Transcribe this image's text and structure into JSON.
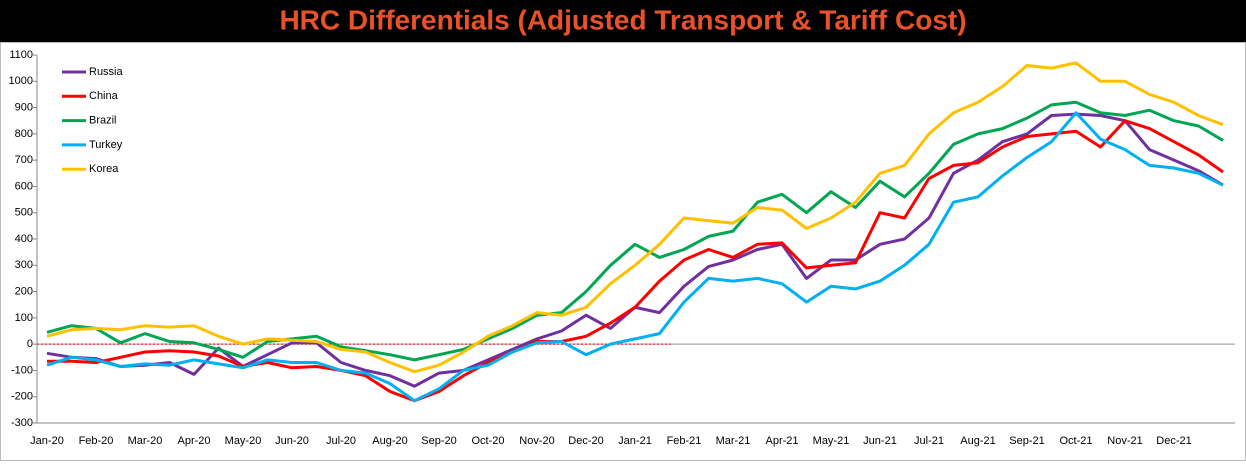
{
  "chart_data": {
    "type": "line",
    "title": "HRC Differentials (Adjusted Transport & Tariff Cost)",
    "categories": [
      "Jan-20",
      null,
      "Feb-20",
      null,
      "Mar-20",
      null,
      "Apr-20",
      null,
      "May-20",
      null,
      "Jun-20",
      null,
      "Jul-20",
      null,
      "Aug-20",
      null,
      "Sep-20",
      null,
      "Oct-20",
      null,
      "Nov-20",
      null,
      "Dec-20",
      null,
      "Jan-21",
      null,
      "Feb-21",
      null,
      "Mar-21",
      null,
      "Apr-21",
      null,
      "May-21",
      null,
      "Jun-21",
      null,
      "Jul-21",
      null,
      "Aug-21",
      null,
      "Sep-21",
      null,
      "Oct-21",
      null,
      "Nov-21",
      null,
      "Dec-21",
      null,
      null
    ],
    "series": [
      {
        "name": "Russia",
        "color": "#7030a0",
        "values": [
          -35,
          -50,
          -55,
          -85,
          -80,
          -70,
          -115,
          -15,
          -85,
          -40,
          5,
          5,
          -70,
          -100,
          -120,
          -160,
          -110,
          -100,
          -60,
          -20,
          20,
          50,
          110,
          60,
          140,
          120,
          220,
          295,
          320,
          360,
          380,
          250,
          320,
          320,
          380,
          400,
          480,
          650,
          700,
          770,
          800,
          870,
          875,
          870,
          850,
          740,
          700,
          660,
          605
        ]
      },
      {
        "name": "China",
        "color": "#ff0000",
        "values": [
          -65,
          -65,
          -70,
          -50,
          -30,
          -25,
          -30,
          -45,
          -85,
          -70,
          -90,
          -85,
          -100,
          -120,
          -180,
          -215,
          -180,
          -120,
          -70,
          -30,
          10,
          10,
          30,
          80,
          140,
          240,
          320,
          360,
          330,
          380,
          385,
          290,
          300,
          310,
          500,
          480,
          630,
          680,
          690,
          750,
          790,
          800,
          810,
          750,
          850,
          820,
          770,
          720,
          655
        ]
      },
      {
        "name": "Brazil",
        "color": "#00a651",
        "values": [
          45,
          70,
          60,
          5,
          40,
          10,
          5,
          -20,
          -50,
          10,
          20,
          30,
          -10,
          -25,
          -40,
          -60,
          -40,
          -20,
          20,
          60,
          110,
          120,
          200,
          300,
          380,
          330,
          360,
          410,
          430,
          540,
          570,
          500,
          580,
          520,
          620,
          560,
          650,
          760,
          800,
          820,
          860,
          910,
          920,
          880,
          870,
          890,
          850,
          830,
          775
        ]
      },
      {
        "name": "Turkey",
        "color": "#00b0f0",
        "values": [
          -80,
          -50,
          -60,
          -85,
          -75,
          -80,
          -60,
          -75,
          -90,
          -60,
          -70,
          -70,
          -100,
          -110,
          -150,
          -215,
          -170,
          -100,
          -80,
          -30,
          5,
          10,
          -40,
          0,
          20,
          40,
          160,
          250,
          240,
          250,
          230,
          160,
          220,
          210,
          240,
          300,
          380,
          540,
          560,
          640,
          710,
          770,
          880,
          780,
          740,
          680,
          670,
          650,
          605
        ]
      },
      {
        "name": "Korea",
        "color": "#ffc000",
        "values": [
          30,
          55,
          60,
          55,
          70,
          65,
          70,
          30,
          0,
          20,
          15,
          10,
          -20,
          -30,
          -70,
          -105,
          -80,
          -30,
          30,
          70,
          120,
          110,
          140,
          230,
          300,
          380,
          480,
          470,
          460,
          520,
          510,
          440,
          480,
          540,
          650,
          680,
          800,
          880,
          920,
          980,
          1060,
          1050,
          1070,
          1000,
          1000,
          950,
          920,
          870,
          835
        ]
      }
    ],
    "ylim": [
      -300,
      1100
    ],
    "yticks": [
      -300,
      -200,
      -100,
      0,
      100,
      200,
      300,
      400,
      500,
      600,
      700,
      800,
      900,
      1000,
      1100
    ],
    "legend": "upper left"
  }
}
